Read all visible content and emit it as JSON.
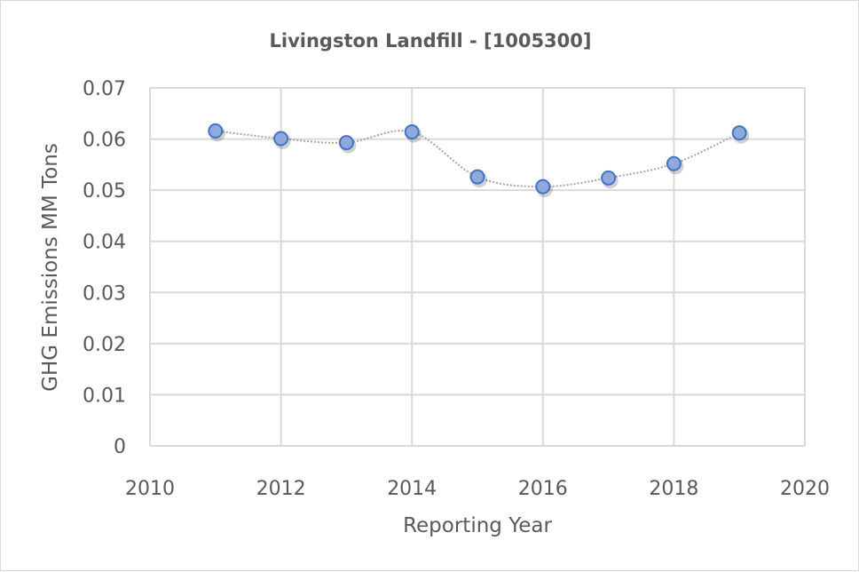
{
  "chart_data": {
    "type": "line",
    "title": "Livingston Landfill - [1005300]",
    "xlabel": "Reporting Year",
    "ylabel": "GHG Emissions MM Tons",
    "xlim": [
      2010,
      2020
    ],
    "ylim": [
      0,
      0.07
    ],
    "xticks": [
      2010,
      2012,
      2014,
      2016,
      2018,
      2020
    ],
    "yticks": [
      "0",
      "0.01",
      "0.02",
      "0.03",
      "0.04",
      "0.05",
      "0.06",
      "0.07"
    ],
    "grid": true,
    "smooth": true,
    "line_style": "dotted",
    "colors": {
      "marker_fill": "#8eaadb",
      "marker_edge": "#4472c4",
      "line": "#a6a6a6",
      "grid": "#d9d9d9",
      "text": "#595959"
    },
    "series": [
      {
        "x": [
          2011,
          2012,
          2013,
          2014,
          2015,
          2016,
          2017,
          2018,
          2019
        ],
        "y": [
          0.0616,
          0.0601,
          0.0593,
          0.0614,
          0.0526,
          0.0507,
          0.0524,
          0.0552,
          0.0612
        ]
      }
    ]
  }
}
